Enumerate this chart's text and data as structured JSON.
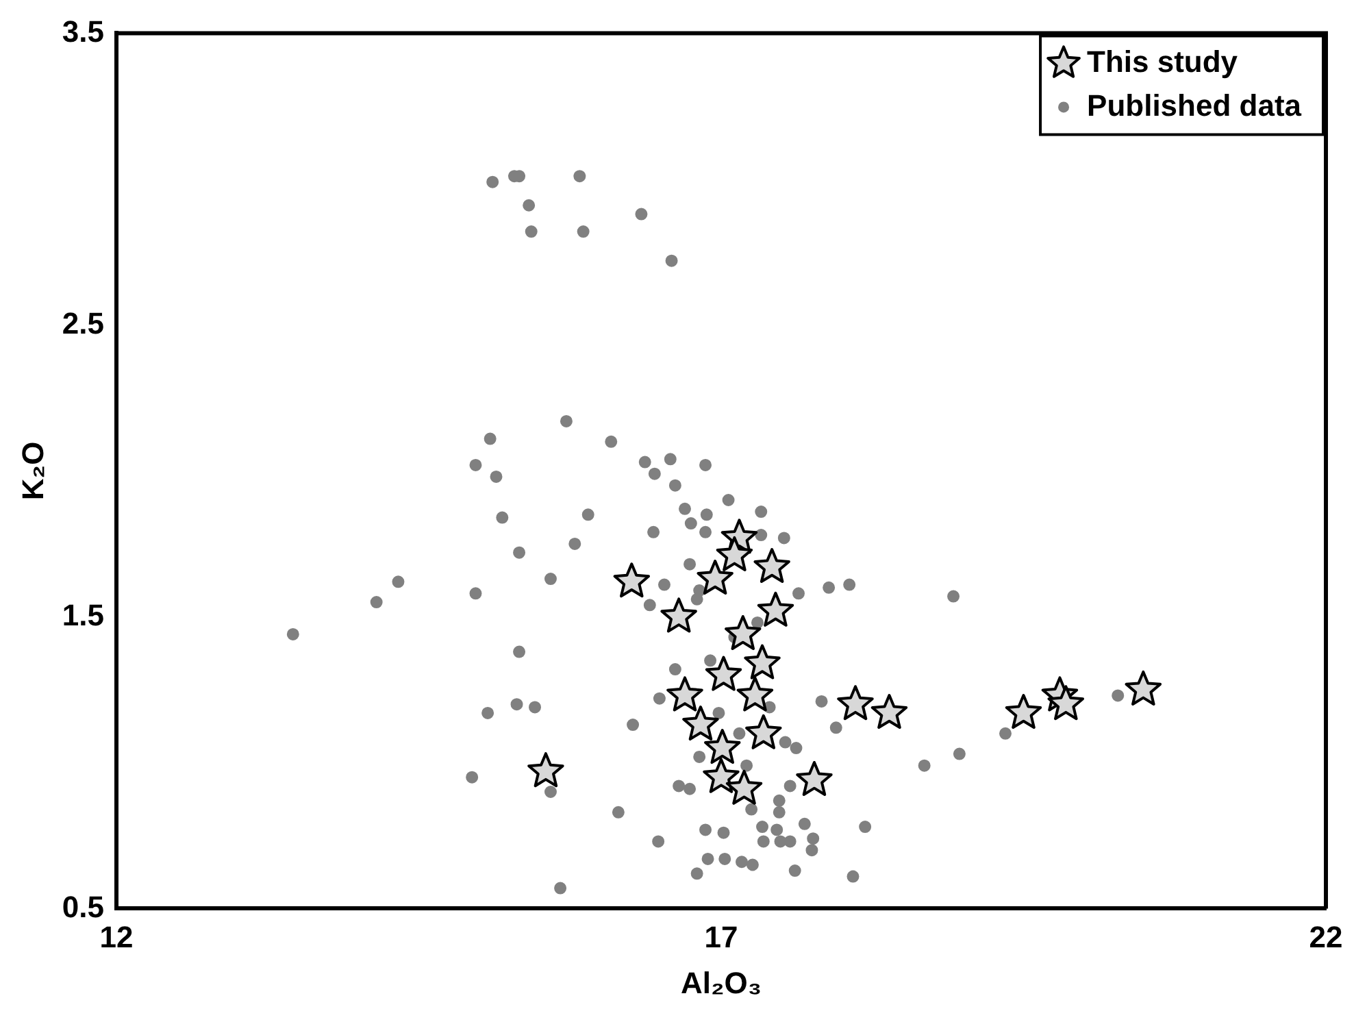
{
  "chart_data": {
    "type": "scatter",
    "xlabel": "Al₂O₃",
    "ylabel": "K₂O",
    "xlim": [
      12,
      22
    ],
    "xticks": [
      12,
      17,
      22
    ],
    "ylim": [
      0.5,
      3.5
    ],
    "yticks": [
      0.5,
      1.5,
      2.5,
      3.5
    ],
    "grid": false,
    "legend": "top right",
    "series": [
      {
        "name": "This study",
        "color": "#000000",
        "marker": "star",
        "x": [
          17.15,
          17.11,
          16.95,
          17.42,
          16.26,
          16.65,
          17.45,
          17.18,
          17.34,
          17.02,
          16.7,
          17.28,
          16.83,
          17.35,
          17.01,
          17.0,
          17.19,
          17.77,
          18.11,
          18.39,
          15.55,
          19.5,
          19.8,
          19.85,
          20.49
        ],
        "values": [
          1.77,
          1.71,
          1.63,
          1.67,
          1.62,
          1.5,
          1.52,
          1.44,
          1.34,
          1.3,
          1.23,
          1.23,
          1.13,
          1.1,
          1.05,
          0.95,
          0.91,
          0.94,
          1.2,
          1.17,
          0.97,
          1.17,
          1.23,
          1.2,
          1.25
        ]
      },
      {
        "name": "Published data",
        "color": "#808080",
        "marker": "circle",
        "x": [
          15.11,
          15.29,
          15.33,
          15.83,
          15.41,
          16.34,
          15.43,
          15.86,
          16.59,
          15.72,
          15.09,
          16.09,
          14.97,
          15.14,
          16.37,
          16.58,
          16.45,
          16.87,
          16.62,
          17.06,
          16.7,
          17.33,
          16.88,
          16.75,
          16.87,
          16.44,
          17.52,
          17.33,
          15.19,
          15.9,
          15.79,
          15.33,
          15.59,
          14.97,
          16.74,
          16.53,
          16.82,
          16.41,
          16.8,
          17.64,
          17.89,
          18.06,
          15.33,
          16.62,
          16.91,
          17.11,
          17.3,
          16.49,
          15.31,
          15.46,
          15.07,
          16.27,
          16.98,
          17.4,
          17.83,
          17.95,
          17.15,
          17.53,
          17.62,
          16.82,
          17.21,
          14.94,
          15.59,
          16.65,
          16.74,
          17.57,
          17.25,
          17.48,
          17.48,
          16.15,
          16.48,
          16.87,
          17.02,
          17.34,
          17.46,
          17.35,
          17.49,
          17.57,
          17.69,
          17.76,
          17.75,
          18.19,
          16.89,
          17.03,
          17.17,
          17.26,
          16.8,
          17.61,
          18.09,
          15.67,
          14.33,
          14.15,
          13.46,
          18.92,
          18.68,
          18.97,
          19.35,
          20.28
        ],
        "values": [
          2.99,
          3.01,
          3.01,
          3.01,
          2.91,
          2.88,
          2.82,
          2.82,
          2.72,
          2.17,
          2.11,
          2.1,
          2.02,
          1.98,
          2.03,
          2.04,
          1.99,
          2.02,
          1.95,
          1.9,
          1.87,
          1.86,
          1.85,
          1.82,
          1.79,
          1.79,
          1.77,
          1.78,
          1.84,
          1.85,
          1.75,
          1.72,
          1.63,
          1.58,
          1.68,
          1.61,
          1.59,
          1.54,
          1.56,
          1.58,
          1.6,
          1.61,
          1.38,
          1.32,
          1.35,
          1.43,
          1.48,
          1.22,
          1.2,
          1.19,
          1.17,
          1.13,
          1.17,
          1.19,
          1.21,
          1.12,
          1.1,
          1.07,
          1.05,
          1.02,
          0.99,
          0.95,
          0.9,
          0.92,
          0.91,
          0.92,
          0.84,
          0.87,
          0.83,
          0.83,
          0.73,
          0.77,
          0.76,
          0.78,
          0.77,
          0.73,
          0.73,
          0.73,
          0.79,
          0.74,
          0.7,
          0.78,
          0.67,
          0.67,
          0.66,
          0.65,
          0.62,
          0.63,
          0.61,
          0.57,
          1.62,
          1.55,
          1.44,
          1.57,
          0.99,
          1.03,
          1.1,
          1.23
        ]
      }
    ]
  }
}
